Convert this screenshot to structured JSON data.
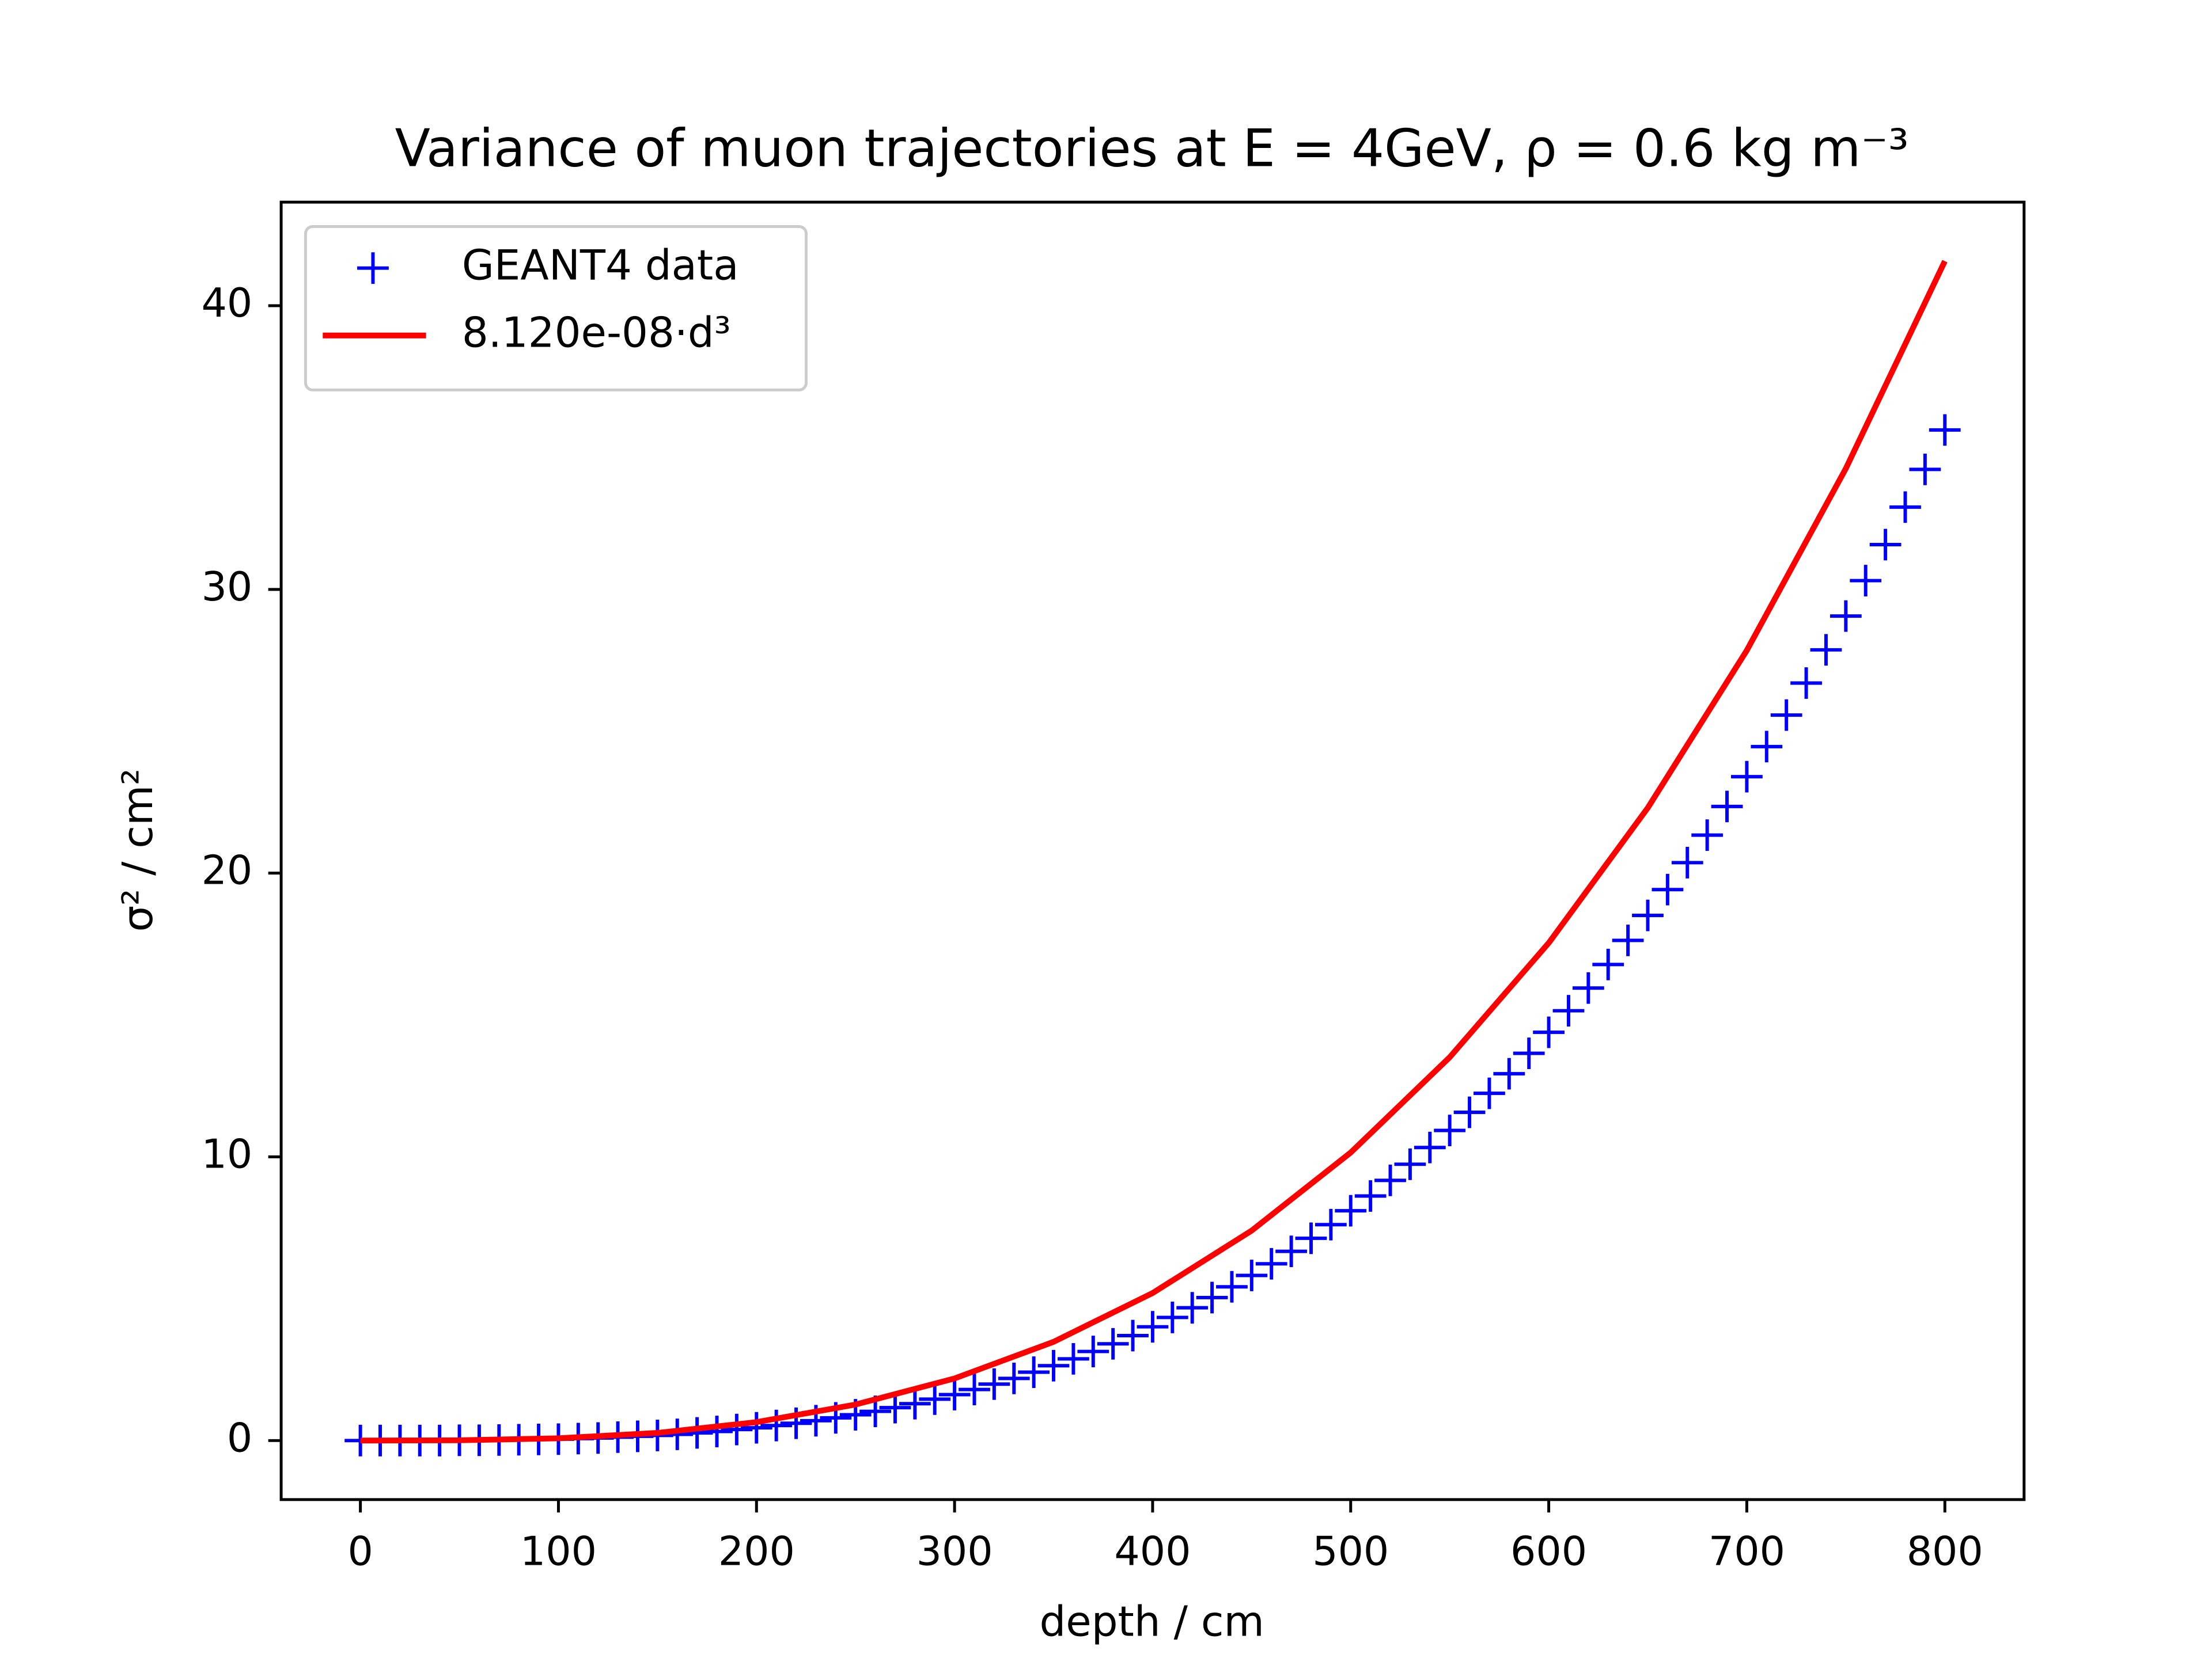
{
  "chart_data": {
    "type": "line",
    "title": "Variance of muon trajectories at E = 4GeV, ρ = 0.6 kg m⁻³",
    "xlabel": "depth / cm",
    "ylabel": "σ² / cm²",
    "xlim": [
      -40,
      840
    ],
    "ylim": [
      -2.08,
      43.65
    ],
    "xticks": [
      0,
      100,
      200,
      300,
      400,
      500,
      600,
      700,
      800
    ],
    "yticks": [
      0,
      10,
      20,
      30,
      40
    ],
    "legend": "upper left",
    "series": [
      {
        "name": "GEANT4 data",
        "color": "#0000ff",
        "style": "marker",
        "x": [
          0,
          10,
          20,
          30,
          40,
          50,
          60,
          70,
          80,
          90,
          100,
          110,
          120,
          130,
          140,
          150,
          160,
          170,
          180,
          190,
          200,
          210,
          220,
          230,
          240,
          250,
          260,
          270,
          280,
          290,
          300,
          310,
          320,
          330,
          340,
          350,
          360,
          370,
          380,
          390,
          400,
          410,
          420,
          430,
          440,
          450,
          460,
          470,
          480,
          490,
          500,
          510,
          520,
          530,
          540,
          550,
          560,
          570,
          580,
          590,
          600,
          610,
          620,
          630,
          640,
          650,
          660,
          670,
          680,
          690,
          700,
          710,
          720,
          730,
          740,
          750,
          760,
          770,
          780,
          790,
          800
        ],
        "values": [
          0,
          0,
          0,
          0,
          0,
          0.01,
          0.01,
          0.02,
          0.03,
          0.04,
          0.05,
          0.07,
          0.09,
          0.12,
          0.15,
          0.18,
          0.22,
          0.27,
          0.32,
          0.39,
          0.45,
          0.53,
          0.61,
          0.7,
          0.8,
          0.91,
          1.03,
          1.16,
          1.3,
          1.46,
          1.62,
          1.8,
          1.99,
          2.19,
          2.41,
          2.64,
          2.88,
          3.14,
          3.41,
          3.7,
          4.01,
          4.34,
          4.68,
          5.04,
          5.42,
          5.82,
          6.23,
          6.67,
          7.13,
          7.61,
          8.1,
          8.62,
          9.17,
          9.74,
          10.33,
          10.93,
          11.57,
          12.24,
          12.93,
          13.65,
          14.39,
          15.15,
          15.95,
          16.78,
          17.63,
          18.51,
          19.42,
          20.37,
          21.34,
          22.35,
          23.4,
          24.46,
          25.57,
          26.7,
          27.87,
          29.06,
          30.31,
          31.58,
          32.9,
          34.23,
          35.62
        ]
      },
      {
        "name": "8.120e-08·d³",
        "color": "#ff0000",
        "style": "line",
        "x": [
          0,
          50,
          100,
          150,
          200,
          250,
          300,
          350,
          400,
          450,
          500,
          550,
          600,
          650,
          700,
          750,
          800
        ],
        "values": [
          0,
          0.01,
          0.08,
          0.27,
          0.65,
          1.27,
          2.19,
          3.48,
          5.2,
          7.4,
          10.15,
          13.51,
          17.54,
          22.3,
          27.85,
          34.26,
          41.57
        ]
      }
    ]
  }
}
